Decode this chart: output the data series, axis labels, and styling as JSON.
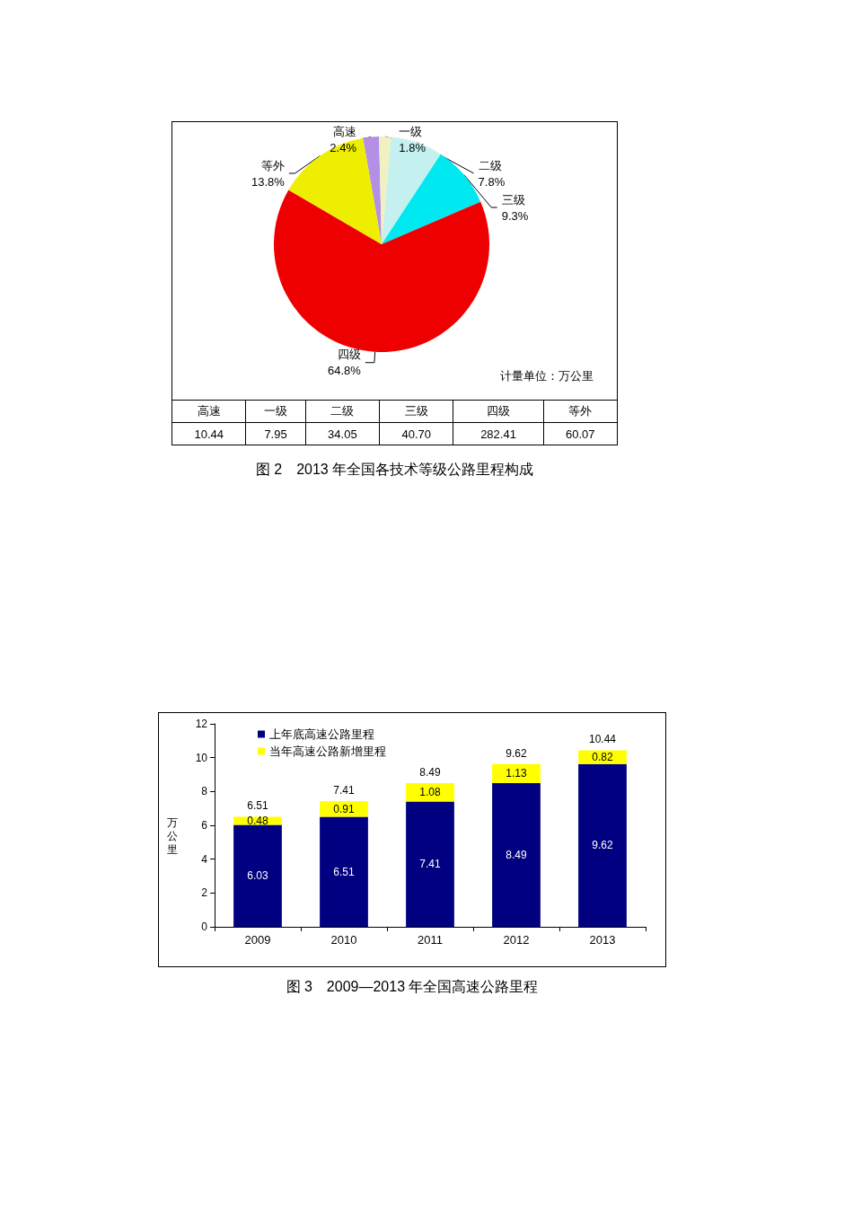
{
  "chart_data": [
    {
      "type": "pie",
      "title": "图 2　2013 年全国各技术等级公路里程构成",
      "categories": [
        "高速",
        "一级",
        "二级",
        "三级",
        "四级",
        "等外"
      ],
      "values": [
        2.4,
        1.8,
        7.8,
        9.3,
        64.8,
        13.8
      ],
      "value_labels": [
        "2.4%",
        "1.8%",
        "7.8%",
        "9.3%",
        "64.8%",
        "13.8%"
      ],
      "colors": [
        "#b38fe6",
        "#f0f0c0",
        "#c4f0f0",
        "#00e8f0",
        "#ee0000",
        "#eeee00"
      ],
      "data_labels": true,
      "legend": false,
      "annotations": [
        "计量单位：万公里",
        "10.44",
        "7.95",
        "34.05",
        "40.70",
        "282.41",
        "60.07"
      ]
    },
    {
      "type": "bar",
      "stacked": true,
      "title": "图 3　2009—2013 年全国高速公路里程",
      "ylabel": "万公里",
      "categories": [
        "2009",
        "2010",
        "2011",
        "2012",
        "2013"
      ],
      "series": [
        {
          "name": "上年底高速公路里程",
          "color": "#000080",
          "values": [
            6.03,
            6.51,
            7.41,
            8.49,
            9.62
          ]
        },
        {
          "name": "当年高速公路新增里程",
          "color": "#ffff00",
          "values": [
            0.48,
            0.91,
            1.08,
            1.13,
            0.82
          ]
        }
      ],
      "totals": [
        "6.51",
        "7.41",
        "8.49",
        "9.62",
        "10.44"
      ],
      "ylim": [
        0,
        12
      ],
      "yticks": [
        0,
        2,
        4,
        6,
        8,
        10,
        12
      ],
      "grid": false,
      "legend": "top left",
      "data_labels": true
    }
  ]
}
